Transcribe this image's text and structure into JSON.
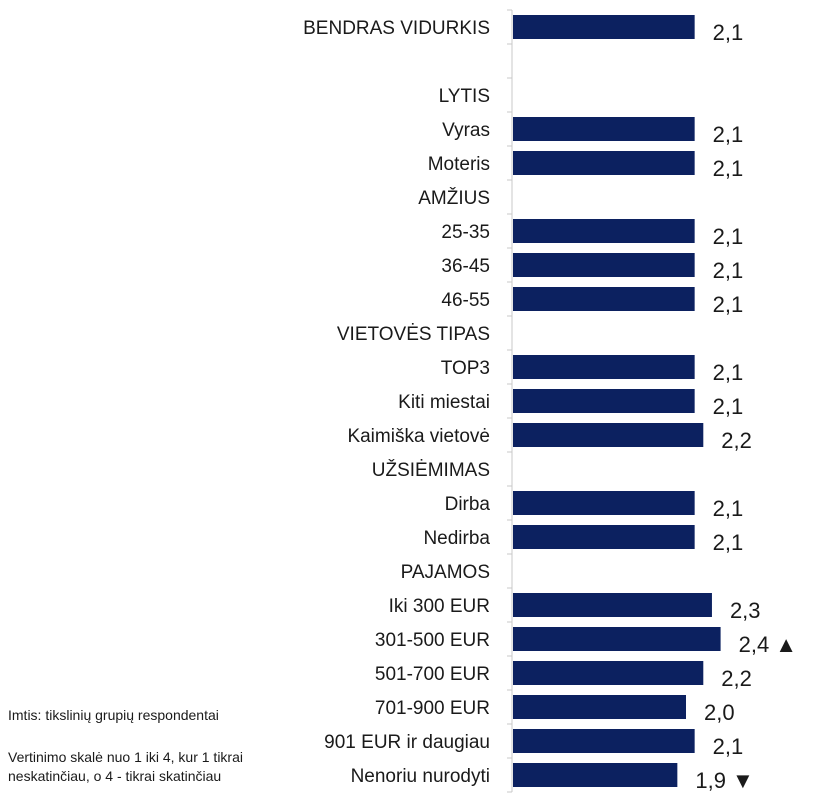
{
  "colors": {
    "bar": "#0c2160",
    "axis": "#c8c8c8",
    "text": "#1a1a1a"
  },
  "notes": {
    "sample": "Imtis: tikslinių grupių respondentai",
    "scale": "Vertinimo skalė nuo 1 iki 4, kur 1 tikrai neskatinčiau, o 4 - tikrai skatinčiau"
  },
  "chart_data": {
    "type": "bar",
    "orientation": "horizontal",
    "xlim": [
      0,
      4
    ],
    "grid": false,
    "categories": [
      "BENDRAS VIDURKIS",
      "",
      "LYTIS",
      "Vyras",
      "Moteris",
      "AMŽIUS",
      "25-35",
      "36-45",
      "46-55",
      "VIETOVĖS TIPAS",
      "TOP3",
      "Kiti miestai",
      "Kaimiška vietovė",
      "UŽSIĖMIMAS",
      "Dirba",
      "Nedirba",
      "PAJAMOS",
      "Iki 300 EUR",
      "301-500 EUR",
      "501-700 EUR",
      "701-900 EUR",
      "901 EUR ir daugiau",
      "Nenoriu nurodyti"
    ],
    "values": [
      2.1,
      null,
      null,
      2.1,
      2.1,
      null,
      2.1,
      2.1,
      2.1,
      null,
      2.1,
      2.1,
      2.2,
      null,
      2.1,
      2.1,
      null,
      2.3,
      2.4,
      2.2,
      2.0,
      2.1,
      1.9
    ],
    "value_labels": [
      "2,1",
      "",
      "",
      "2,1",
      "2,1",
      "",
      "2,1",
      "2,1",
      "2,1",
      "",
      "2,1",
      "2,1",
      "2,2",
      "",
      "2,1",
      "2,1",
      "",
      "2,3",
      "2,4 ▲",
      "2,2",
      "2,0",
      "2,1",
      "1,9 ▼"
    ]
  }
}
